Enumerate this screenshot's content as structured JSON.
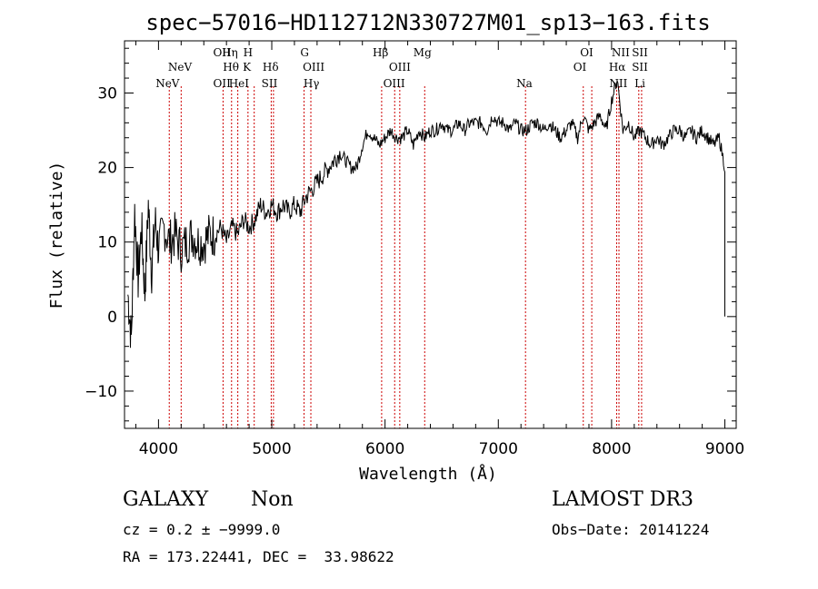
{
  "chart_data": {
    "type": "line",
    "title": "spec−57016−HD112712N330727M01_sp13−163.fits",
    "xlabel": "Wavelength (Å)",
    "ylabel": "Flux (relative)",
    "xlim": [
      3700,
      9100
    ],
    "ylim": [
      -15,
      37
    ],
    "x_ticks": [
      4000,
      5000,
      6000,
      7000,
      8000,
      9000
    ],
    "y_ticks": [
      -10,
      0,
      10,
      20,
      30
    ],
    "y_tick_labels": [
      "−10",
      "0",
      "10",
      "20",
      "30"
    ],
    "grid": false,
    "series": [
      {
        "name": "",
        "color": "#000000",
        "x": [
          3730,
          3760,
          3790,
          3820,
          3850,
          3880,
          3910,
          3940,
          3970,
          4000,
          4050,
          4100,
          4150,
          4200,
          4250,
          4300,
          4350,
          4400,
          4450,
          4500,
          4550,
          4600,
          4650,
          4700,
          4750,
          4800,
          4850,
          4900,
          4950,
          5000,
          5050,
          5100,
          5150,
          5200,
          5250,
          5300,
          5350,
          5400,
          5450,
          5500,
          5550,
          5600,
          5650,
          5700,
          5750,
          5800,
          5850,
          5900,
          5950,
          6000,
          6050,
          6100,
          6150,
          6200,
          6250,
          6300,
          6350,
          6400,
          6450,
          6500,
          6550,
          6600,
          6650,
          6700,
          6750,
          6800,
          6850,
          6900,
          6950,
          7000,
          7050,
          7100,
          7150,
          7200,
          7250,
          7300,
          7350,
          7400,
          7450,
          7500,
          7550,
          7600,
          7650,
          7700,
          7750,
          7800,
          7850,
          7900,
          7950,
          8000,
          8050,
          8100,
          8150,
          8200,
          8250,
          8300,
          8350,
          8400,
          8450,
          8500,
          8550,
          8600,
          8650,
          8700,
          8750,
          8800,
          8850,
          8900,
          8950,
          9000
        ],
        "y": [
          3,
          -3,
          14,
          5,
          12,
          3,
          15,
          6,
          13,
          9,
          12,
          10,
          11,
          9,
          10,
          11,
          10,
          10,
          11,
          11,
          12,
          10,
          12,
          11,
          13,
          12,
          13,
          15,
          14,
          15,
          14,
          15,
          14,
          15,
          14,
          16,
          17,
          18,
          19,
          20,
          21,
          22,
          21,
          20,
          20,
          23,
          25,
          24,
          23,
          24,
          25,
          24,
          24,
          25,
          23,
          25,
          24,
          25,
          25,
          26,
          25,
          25,
          26,
          25,
          26,
          26,
          26,
          25,
          27,
          26,
          26,
          25,
          26,
          25,
          25,
          26,
          26,
          25,
          26,
          25,
          24,
          25,
          26,
          24,
          27,
          25,
          26,
          27,
          25,
          29,
          32,
          25,
          26,
          24,
          25,
          24,
          23,
          24,
          23,
          24,
          25,
          25,
          24,
          25,
          24,
          25,
          24,
          23,
          24,
          20
        ],
        "end_drop_to": 0
      }
    ],
    "spectral_lines": [
      {
        "label": "NeV",
        "x": 4080,
        "row": 3
      },
      {
        "label": "NeV",
        "x": 4190,
        "row": 2
      },
      {
        "label": "OII",
        "x": 4560,
        "row": 1
      },
      {
        "label": "OII",
        "x": 4560,
        "row": 3
      },
      {
        "label": "Hη",
        "x": 4630,
        "row": 1
      },
      {
        "label": "Hθ",
        "x": 4640,
        "row": 2
      },
      {
        "label": "HeI",
        "x": 4710,
        "row": 3
      },
      {
        "label": "H",
        "x": 4790,
        "row": 1
      },
      {
        "label": "K",
        "x": 4780,
        "row": 2
      },
      {
        "label": "Hδ",
        "x": 4990,
        "row": 2
      },
      {
        "label": "SII",
        "x": 4980,
        "row": 3
      },
      {
        "label": "G",
        "x": 5290,
        "row": 1
      },
      {
        "label": "OIII",
        "x": 5370,
        "row": 2
      },
      {
        "label": "Hγ",
        "x": 5350,
        "row": 3
      },
      {
        "label": "Hβ",
        "x": 5960,
        "row": 1
      },
      {
        "label": "OIII",
        "x": 6130,
        "row": 2
      },
      {
        "label": "OIII",
        "x": 6080,
        "row": 3
      },
      {
        "label": "Mg",
        "x": 6330,
        "row": 1
      },
      {
        "label": "Na",
        "x": 7230,
        "row": 3
      },
      {
        "label": "OI",
        "x": 7780,
        "row": 1
      },
      {
        "label": "OI",
        "x": 7720,
        "row": 2
      },
      {
        "label": "NII",
        "x": 8080,
        "row": 1
      },
      {
        "label": "Hα",
        "x": 8050,
        "row": 2
      },
      {
        "label": "NII",
        "x": 8060,
        "row": 3
      },
      {
        "label": "SII",
        "x": 8250,
        "row": 1
      },
      {
        "label": "SII",
        "x": 8250,
        "row": 2
      },
      {
        "label": "Li",
        "x": 8250,
        "row": 3
      }
    ],
    "marker_lines_x": [
      4095,
      4200,
      4570,
      4645,
      4700,
      4790,
      4845,
      4995,
      5015,
      5285,
      5345,
      5970,
      6085,
      6130,
      6350,
      7240,
      7750,
      7825,
      8045,
      8065,
      8240,
      8265
    ],
    "marker_color": "#cc0000"
  },
  "info": {
    "object_class": "GALAXY",
    "subclass": "Non",
    "survey": "LAMOST DR3",
    "cz": "cz = 0.2 ± −9999.0",
    "obs_date": "Obs−Date: 20141224",
    "coords": "RA = 173.22441, DEC =  33.98622"
  }
}
